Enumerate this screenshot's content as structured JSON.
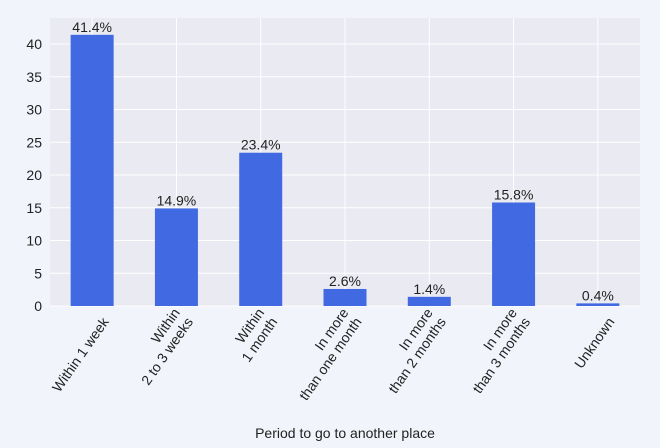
{
  "chart_data": {
    "type": "bar",
    "title": "",
    "xlabel": "Period to go to another place",
    "ylabel": "",
    "ylim": [
      0,
      42
    ],
    "yticks": [
      0,
      5,
      10,
      15,
      20,
      25,
      30,
      35,
      40
    ],
    "grid": true,
    "bar_color": "#4169e1",
    "plot_background": "#e9eaf2",
    "categories": [
      [
        "Within 1 week"
      ],
      [
        "Within",
        "2 to 3 weeks"
      ],
      [
        "Within",
        "1 month"
      ],
      [
        "In more",
        "than one month"
      ],
      [
        "In more",
        "than 2 months"
      ],
      [
        "In more",
        "than 3 months"
      ],
      [
        "Unknown"
      ]
    ],
    "values": [
      41.4,
      14.9,
      23.4,
      2.6,
      1.4,
      15.8,
      0.4
    ],
    "data_labels": [
      "41.4%",
      "14.9%",
      "23.4%",
      "2.6%",
      "1.4%",
      "15.8%",
      "0.4%"
    ]
  }
}
